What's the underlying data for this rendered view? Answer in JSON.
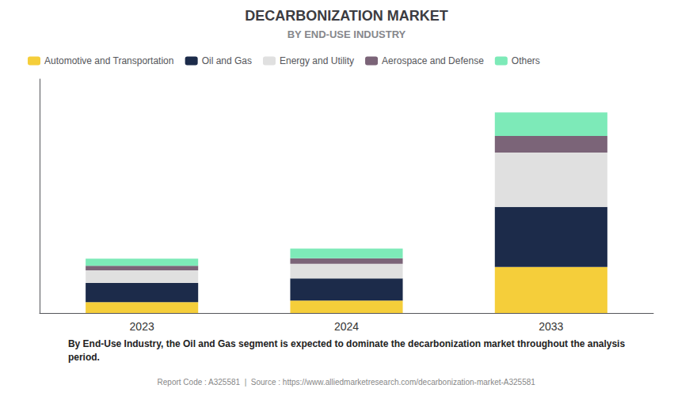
{
  "chart_data": {
    "type": "bar",
    "title": "DECARBONIZATION MARKET",
    "subtitle": "BY END-USE INDUSTRY",
    "categories": [
      "2023",
      "2024",
      "2033"
    ],
    "series": [
      {
        "name": "Automotive and Transportation",
        "color": "#F5CE3A",
        "values": [
          0.13,
          0.15,
          0.55
        ]
      },
      {
        "name": "Oil and Gas",
        "color": "#1C2B4A",
        "values": [
          0.23,
          0.265,
          0.72
        ]
      },
      {
        "name": "Energy and Utility",
        "color": "#E0E0E0",
        "values": [
          0.15,
          0.175,
          0.65
        ]
      },
      {
        "name": "Aerospace and Defense",
        "color": "#7B6478",
        "values": [
          0.055,
          0.065,
          0.2
        ]
      },
      {
        "name": "Others",
        "color": "#7DEAB8",
        "values": [
          0.085,
          0.115,
          0.28
        ]
      }
    ],
    "stacked": true,
    "ylim": [
      0,
      2.8
    ],
    "tick_labels": "x",
    "grid": false,
    "legend": "upper left",
    "annotations": [
      "By End-Use Industry, the Oil and Gas segment is expected to dominate the decarbonization market throughout the analysis\nperiod.",
      "Report Code : A325581  |  Source : https://www.alliedmarketresearch.com/decarbonization-market-A325581"
    ]
  }
}
